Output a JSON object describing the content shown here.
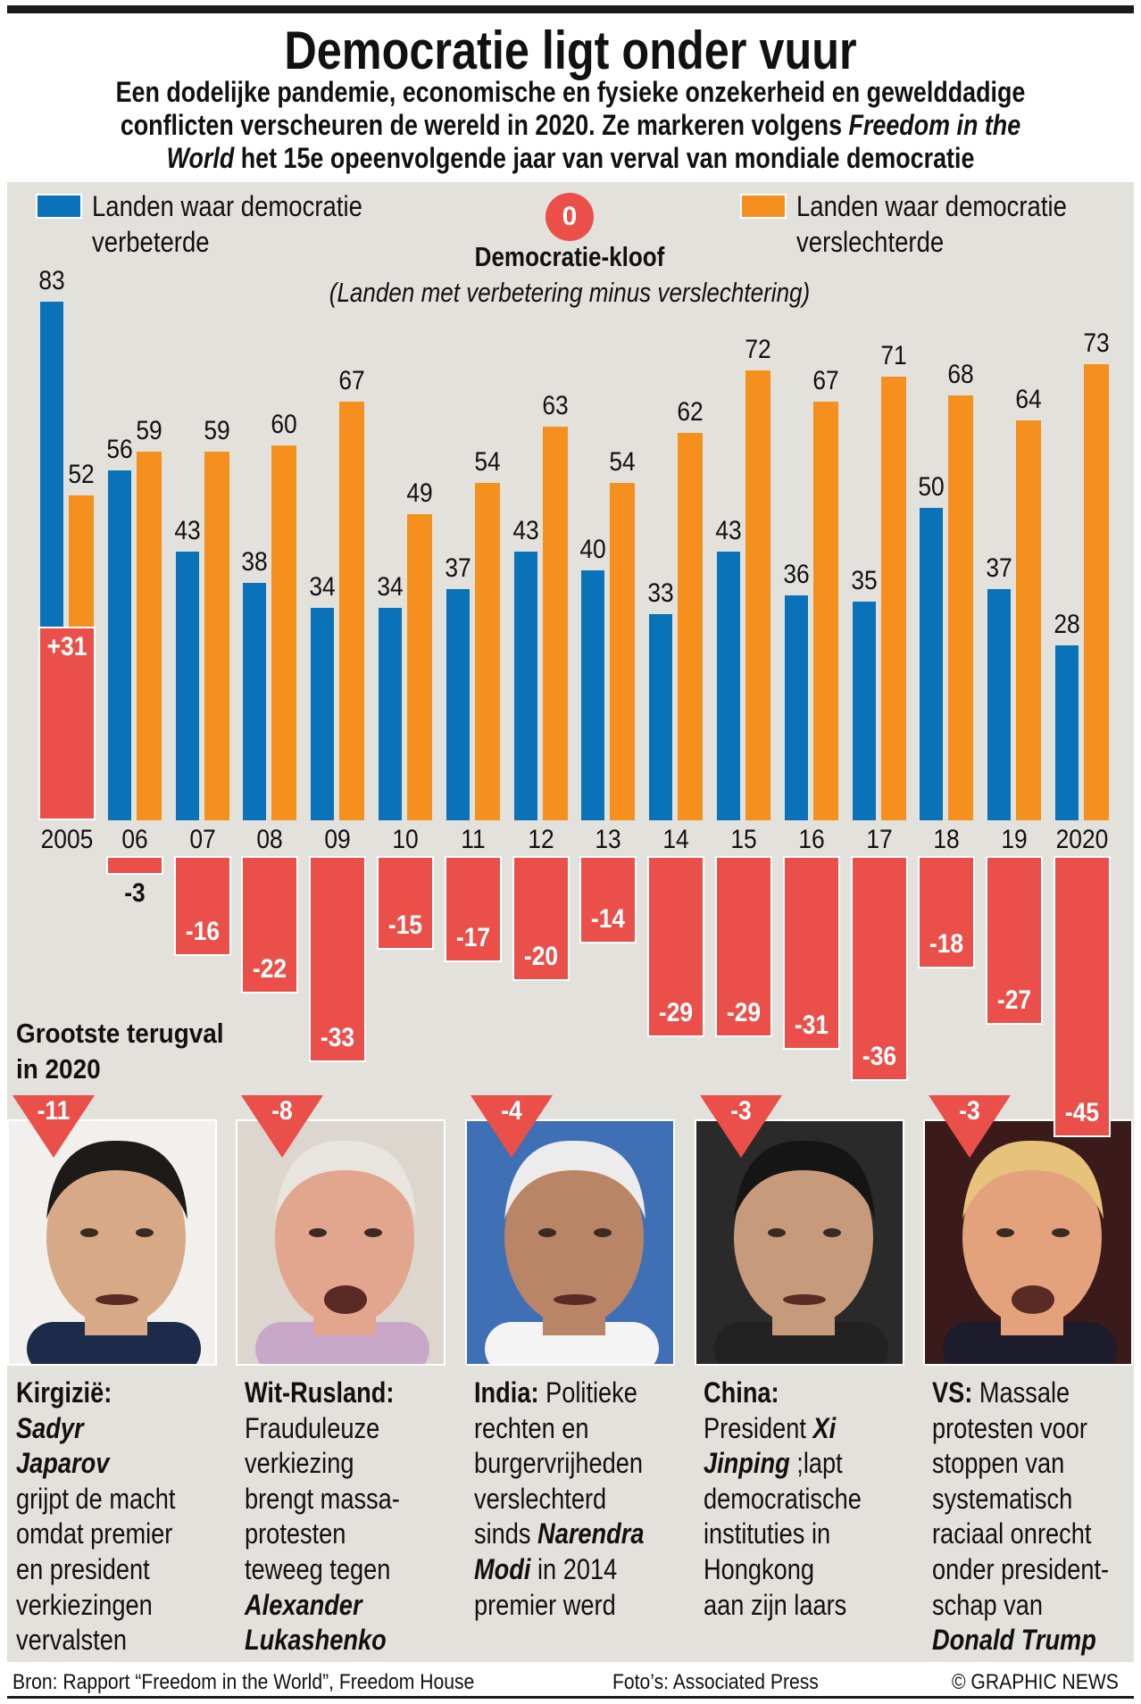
{
  "header": {
    "title": "Democratie ligt onder vuur",
    "subtitle_lines": [
      [
        [
          "b",
          "Een dodelijke pandemie, economische en fysieke onzekerheid en gewelddadige"
        ]
      ],
      [
        [
          "b",
          "conflicten verscheuren de wereld in 2020. Ze markeren volgens "
        ],
        [
          "bi",
          "Freedom in the"
        ]
      ],
      [
        [
          "bi",
          "World"
        ],
        [
          "b",
          " het 15e opeenvolgende jaar van verval van mondiale democratie"
        ]
      ]
    ]
  },
  "chart_data": {
    "type": "bar",
    "categories": [
      "2005",
      "06",
      "07",
      "08",
      "09",
      "10",
      "11",
      "12",
      "13",
      "14",
      "15",
      "16",
      "17",
      "18",
      "19",
      "2020"
    ],
    "series": [
      {
        "name": "Landen waar democratie verbeterde",
        "color": "#0a72b8",
        "values": [
          83,
          56,
          43,
          38,
          34,
          34,
          37,
          43,
          40,
          33,
          43,
          36,
          35,
          50,
          37,
          28
        ]
      },
      {
        "name": "Landen waar democratie verslechterde",
        "color": "#f5901e",
        "values": [
          52,
          59,
          59,
          60,
          67,
          49,
          54,
          63,
          54,
          62,
          72,
          67,
          71,
          68,
          64,
          73
        ]
      },
      {
        "name": "Democratie-kloof",
        "color": "#ea4f4a",
        "values": [
          31,
          -3,
          -16,
          -22,
          -33,
          -15,
          -17,
          -20,
          -14,
          -29,
          -29,
          -31,
          -36,
          -18,
          -27,
          -45
        ],
        "labels": [
          "+31",
          "-3",
          "-16",
          "-22",
          "-33",
          "-15",
          "-17",
          "-20",
          "-14",
          "-29",
          "-29",
          "-31",
          "-36",
          "-18",
          "-27",
          "-45"
        ]
      }
    ],
    "legend": {
      "improved": [
        "Landen waar democratie",
        "verbeterde"
      ],
      "worsened": [
        "Landen waar democratie",
        "verslechterde"
      ]
    },
    "gap": {
      "zero_marker": "0",
      "title": "Democratie-kloof",
      "subtitle": "(Landen met verbetering minus verslechtering)"
    }
  },
  "biggest_drop": {
    "heading": [
      "Grootste terugval",
      "in 2020"
    ],
    "items": [
      {
        "score": "-11",
        "photo": "portrait-japarov",
        "lines": [
          [
            [
              "b",
              "Kirgizië:"
            ]
          ],
          [
            [
              "bi",
              "Sadyr"
            ]
          ],
          [
            [
              "bi",
              "Japarov"
            ]
          ],
          [
            [
              "",
              "grijpt de macht"
            ]
          ],
          [
            [
              "",
              "omdat premier"
            ]
          ],
          [
            [
              "",
              "en president"
            ]
          ],
          [
            [
              "",
              "verkiezingen"
            ]
          ],
          [
            [
              "",
              "vervalsten"
            ]
          ]
        ]
      },
      {
        "score": "-8",
        "photo": "portrait-lukashenko",
        "lines": [
          [
            [
              "b",
              "Wit-Rusland:"
            ]
          ],
          [
            [
              "",
              "Frauduleuze"
            ]
          ],
          [
            [
              "",
              "verkiezing"
            ]
          ],
          [
            [
              "",
              "brengt massa-"
            ]
          ],
          [
            [
              "",
              "protesten"
            ]
          ],
          [
            [
              "",
              "teweeg tegen"
            ]
          ],
          [
            [
              "bi",
              "Alexander"
            ]
          ],
          [
            [
              "bi",
              "Lukashenko"
            ]
          ]
        ]
      },
      {
        "score": "-4",
        "photo": "portrait-modi",
        "lines": [
          [
            [
              "b",
              "India:"
            ],
            [
              "",
              " Politieke"
            ]
          ],
          [
            [
              "",
              "rechten en"
            ]
          ],
          [
            [
              "",
              "burgervrijheden"
            ]
          ],
          [
            [
              "",
              "verslechterd"
            ]
          ],
          [
            [
              "",
              "sinds "
            ],
            [
              "bi",
              "Narendra"
            ]
          ],
          [
            [
              "bi",
              "Modi"
            ],
            [
              "",
              " in 2014"
            ]
          ],
          [
            [
              "",
              "premier werd"
            ]
          ]
        ]
      },
      {
        "score": "-3",
        "photo": "portrait-xi",
        "lines": [
          [
            [
              "b",
              "China:"
            ]
          ],
          [
            [
              "",
              "President "
            ],
            [
              "bi",
              "Xi"
            ]
          ],
          [
            [
              "bi",
              "Jinping"
            ],
            [
              "",
              " ;lapt"
            ]
          ],
          [
            [
              "",
              "democratische"
            ]
          ],
          [
            [
              "",
              "instituties in"
            ]
          ],
          [
            [
              "",
              "Hongkong"
            ]
          ],
          [
            [
              "",
              "aan zijn laars"
            ]
          ]
        ]
      },
      {
        "score": "-3",
        "photo": "portrait-trump",
        "lines": [
          [
            [
              "b",
              "VS:"
            ],
            [
              "",
              " Massale"
            ]
          ],
          [
            [
              "",
              "protesten voor"
            ]
          ],
          [
            [
              "",
              "stoppen van"
            ]
          ],
          [
            [
              "",
              "systematisch"
            ]
          ],
          [
            [
              "",
              "raciaal onrecht"
            ]
          ],
          [
            [
              "",
              "onder president-"
            ]
          ],
          [
            [
              "",
              "schap van"
            ]
          ],
          [
            [
              "bi",
              "Donald Trump"
            ]
          ]
        ]
      }
    ]
  },
  "footer": {
    "source": "Bron: Rapport “Freedom in the World”, Freedom House",
    "photos": "Foto’s: Associated Press",
    "credit": "© GRAPHIC NEWS"
  }
}
